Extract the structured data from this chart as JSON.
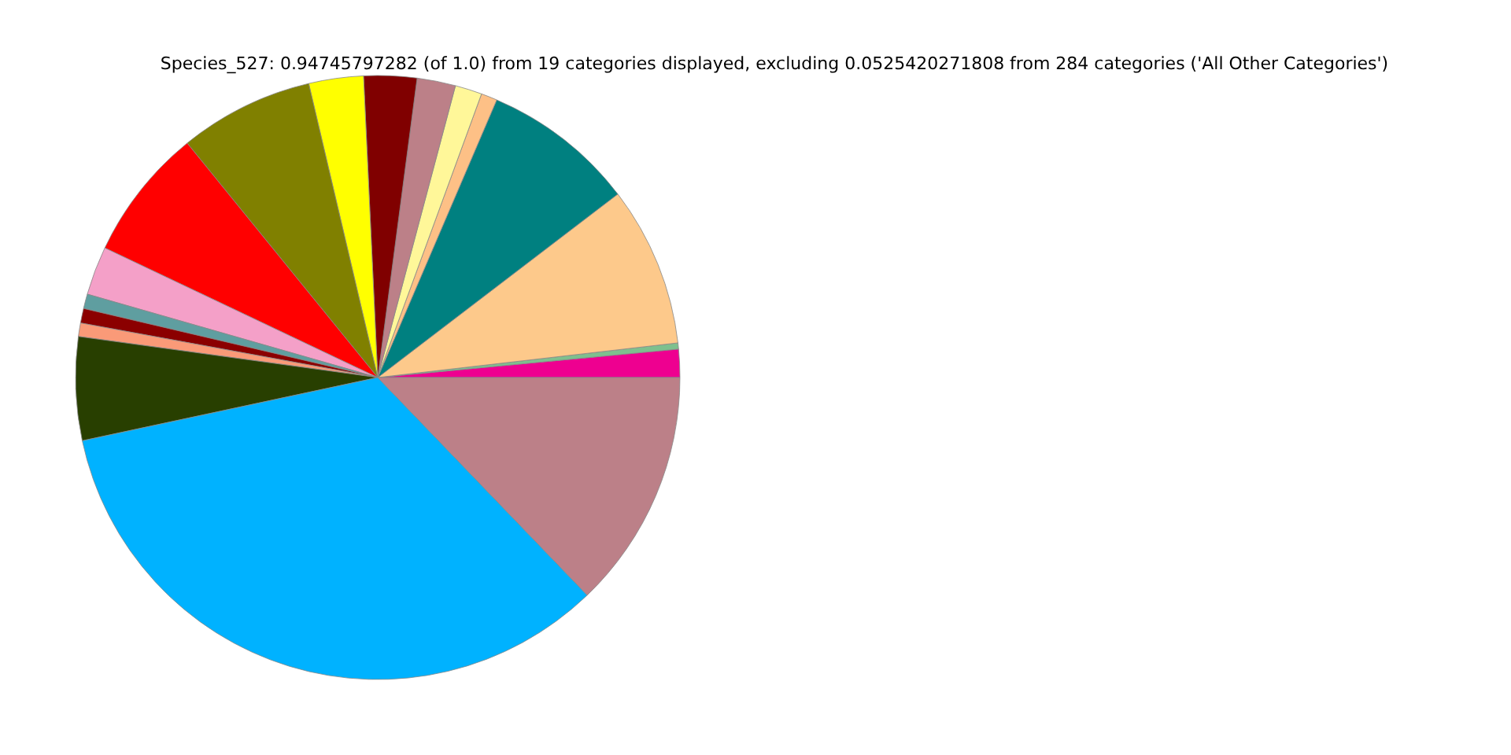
{
  "chart_data": {
    "type": "pie",
    "title": "Species_527: 0.94745797282 (of 1.0) from 19 categories displayed, excluding 0.0525420271808 from 284 categories ('All Other Categories')",
    "categories": [
      null,
      null,
      null,
      null,
      null,
      null,
      null,
      null,
      null,
      null,
      null,
      null,
      null,
      null,
      null,
      null,
      null,
      null
    ],
    "values": [
      1.5,
      0.33,
      8.56,
      8.17,
      0.86,
      1.44,
      2.06,
      2.83,
      2.92,
      7.19,
      7.08,
      2.61,
      0.78,
      0.78,
      0.72,
      5.53,
      33.83,
      12.81
    ],
    "colors": [
      "#ee0090",
      "#7ec08e",
      "#fdc98b",
      "#008080",
      "#fdc086",
      "#fff799",
      "#bc8088",
      "#800000",
      "#ffff00",
      "#808000",
      "#ff0000",
      "#f4a0c8",
      "#5f9ea0",
      "#8b0000",
      "#fa9a78",
      "#283f00",
      "#00b2ff",
      "#bc8088"
    ],
    "legend": false
  }
}
